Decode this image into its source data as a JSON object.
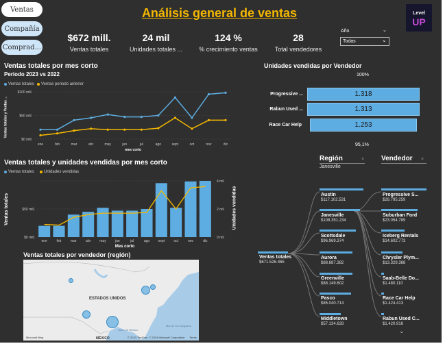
{
  "nav": {
    "ventas": "Ventas",
    "compania": "Compañía",
    "compradores": "Comprad..."
  },
  "header": {
    "title": "Análisis general de ventas",
    "logo_line1": "Level",
    "logo_line2": "UP"
  },
  "kpis": [
    {
      "value": "$672 mill.",
      "label": "Ventas totales"
    },
    {
      "value": "24 mil",
      "label": "Unidades totales ..."
    },
    {
      "value": "124 %",
      "label": "% crecimiento ventas"
    },
    {
      "value": "28",
      "label": "Total vendedores"
    }
  ],
  "filter": {
    "label": "Año",
    "value": "Todas"
  },
  "line_chart": {
    "title": "Ventas totales por mes corto",
    "subtitle": "Periodo 2023 vs 2022",
    "legend": [
      "Ventas totales",
      "Ventas periodo anterior"
    ],
    "ylabel": "Ventas totales y Ventas ...",
    "xlabel": "mes corto",
    "yticks": [
      "$100 mill.",
      "$50 mill.",
      "$0 mill."
    ]
  },
  "combo_chart": {
    "title": "Ventas totales y unidades vendidas por mes corto",
    "legend": [
      "Ventas totales",
      "Unidades vendidas"
    ],
    "ylabel": "Ventas totales",
    "y2label": "Unidades vendidas",
    "xlabel": "Mes corto",
    "yticks": [
      "$50 mill.",
      "$0 mill."
    ],
    "y2ticks": [
      "4 mil",
      "2 mil",
      "0 mil"
    ]
  },
  "funnel": {
    "title": "Unidades vendidas por Vendedor",
    "top_pct": "100%",
    "bottom_pct": "95,1%",
    "rows": [
      {
        "label": "Progressive ...",
        "value": "1.318"
      },
      {
        "label": "Rabun Used ...",
        "value": "1.313"
      },
      {
        "label": "Race Car Help",
        "value": "1.253"
      }
    ]
  },
  "map": {
    "title": "Ventas totales por vendedor (región)",
    "country": "ESTADOS UNIDOS",
    "sea1": "Mar de los Sargazos",
    "gulf": "Golfo de México",
    "mexico": "MÉXICO",
    "brand": "Microsoft Bing",
    "copyright": "© 2023 TomTom, © 2024 Microsoft Corporation",
    "terms": "Terms"
  },
  "decomp": {
    "region_header": "Región",
    "region_selected": "Janesville",
    "vendor_header": "Vendedor",
    "root_label": "Ventas totales",
    "root_value": "$671.526.465",
    "regions": [
      {
        "name": "Austin",
        "value": "$117.102.531"
      },
      {
        "name": "Janesville",
        "value": "$108.351.234"
      },
      {
        "name": "Scottsdale",
        "value": "$96.969.374"
      },
      {
        "name": "Aurora",
        "value": "$88.687.382"
      },
      {
        "name": "Greenville",
        "value": "$88.149.602"
      },
      {
        "name": "Pasco",
        "value": "$85.040.714"
      },
      {
        "name": "Middletown",
        "value": "$57.134.628"
      }
    ],
    "vendors": [
      {
        "name": "Progressive S...",
        "value": "$28.795.259"
      },
      {
        "name": "Suburban Ford",
        "value": "$23.054.789"
      },
      {
        "name": "Iceberg Rentals",
        "value": "$14.602.773"
      },
      {
        "name": "Chrysler Plym...",
        "value": "$13.329.388"
      },
      {
        "name": "Saab-Belle Do...",
        "value": "$1.480.110"
      },
      {
        "name": "Race Car Help",
        "value": "$1.424.413"
      },
      {
        "name": "Rabun Used C...",
        "value": "$1.420.916"
      }
    ]
  },
  "chart_data": [
    {
      "type": "line",
      "title": "Ventas totales por mes corto",
      "categories": [
        "ene",
        "feb",
        "mar",
        "abr",
        "may",
        "jun",
        "jul",
        "ago",
        "sept",
        "oct",
        "nov",
        "dic"
      ],
      "series": [
        {
          "name": "Ventas totales",
          "color": "#5dade2",
          "values": [
            20,
            20,
            40,
            45,
            52,
            47,
            47,
            50,
            88,
            45,
            95,
            98
          ]
        },
        {
          "name": "Ventas periodo anterior",
          "color": "#f5b800",
          "values": [
            8,
            12,
            18,
            22,
            20,
            20,
            20,
            23,
            45,
            22,
            40,
            40
          ]
        }
      ],
      "ylim": [
        0,
        100
      ],
      "xlabel": "mes corto",
      "ylabel": "Ventas totales y Ventas ..."
    },
    {
      "type": "bar",
      "title": "Ventas totales y unidades vendidas por mes corto",
      "categories": [
        "ene",
        "feb",
        "mar",
        "abr",
        "may",
        "jun",
        "jul",
        "ago",
        "sept",
        "oct",
        "nov",
        "dic"
      ],
      "series": [
        {
          "name": "Ventas totales",
          "color": "#5dade2",
          "axis": "left",
          "values": [
            20,
            20,
            40,
            45,
            52,
            47,
            47,
            50,
            96,
            52,
            99,
            100
          ]
        },
        {
          "name": "Unidades vendidas",
          "color": "#f5b800",
          "axis": "right",
          "type": "line",
          "values": [
            0.9,
            0.85,
            1.4,
            1.6,
            1.7,
            1.7,
            1.7,
            1.75,
            3.3,
            2.0,
            3.5,
            3.6
          ]
        }
      ],
      "ylim": [
        0,
        100
      ],
      "y2lim": [
        0,
        4
      ],
      "xlabel": "Mes corto",
      "ylabel": "Ventas totales",
      "y2label": "Unidades vendidas"
    }
  ]
}
